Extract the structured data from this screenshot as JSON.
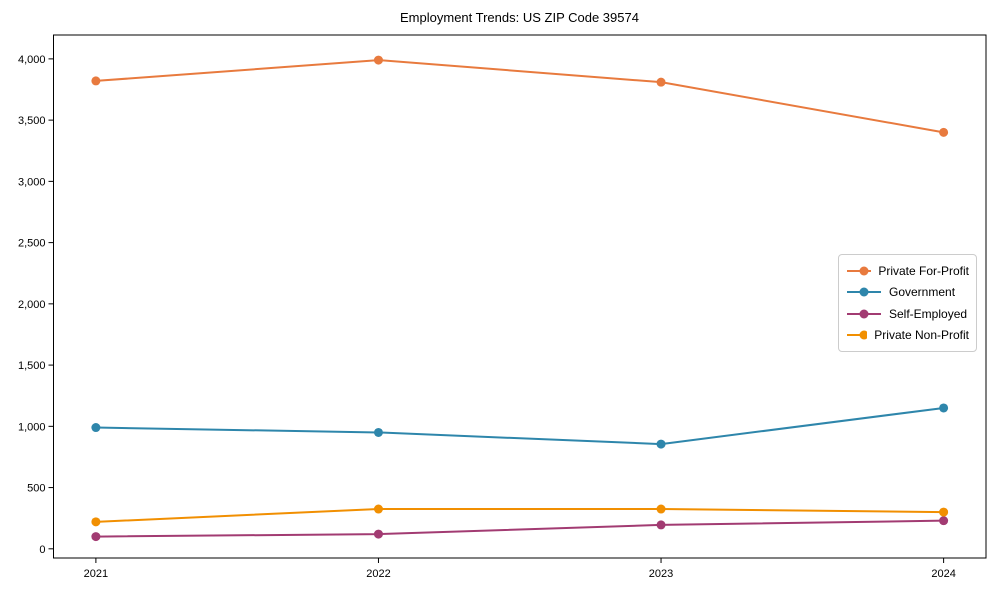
{
  "title": "Employment Trends: US ZIP Code 39574",
  "chart_data": {
    "type": "line",
    "title": "Employment Trends: US ZIP Code 39574",
    "xlabel": "",
    "ylabel": "",
    "x": [
      2021,
      2022,
      2023,
      2024
    ],
    "xtick_labels": [
      "2021",
      "2022",
      "2023",
      "2024"
    ],
    "yticks": [
      0,
      500,
      1000,
      1500,
      2000,
      2500,
      3000,
      3500,
      4000
    ],
    "ytick_labels": [
      "0",
      "500",
      "1,000",
      "1,500",
      "2,000",
      "2,500",
      "3,000",
      "3,500",
      "4,000"
    ],
    "xlim": [
      2020.85,
      2024.15
    ],
    "ylim": [
      -75,
      4195
    ],
    "grid": false,
    "legend_position": "center right",
    "marker": "circle",
    "line_width": 2,
    "axis_color": "#000000",
    "background_color": "#ffffff",
    "series": [
      {
        "name": "Private For-Profit",
        "color": "#E87A3E",
        "values": [
          3820,
          3990,
          3810,
          3400
        ]
      },
      {
        "name": "Government",
        "color": "#2E86AB",
        "values": [
          990,
          950,
          855,
          1150
        ]
      },
      {
        "name": "Self-Employed",
        "color": "#A23B72",
        "values": [
          100,
          120,
          195,
          230
        ]
      },
      {
        "name": "Private Non-Profit",
        "color": "#F18F01",
        "values": [
          220,
          325,
          325,
          300
        ]
      }
    ]
  }
}
